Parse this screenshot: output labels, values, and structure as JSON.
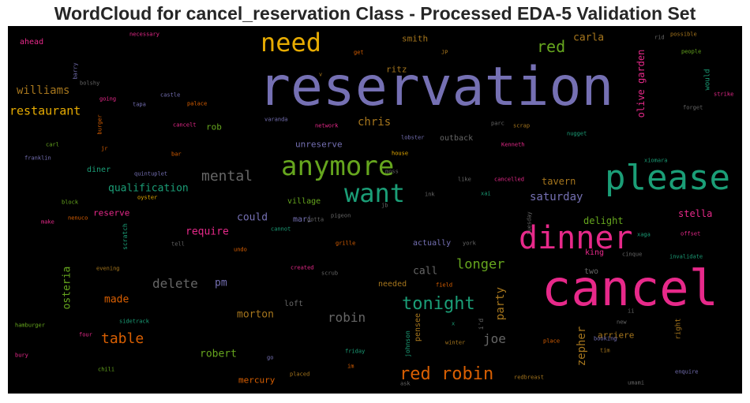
{
  "title": "WordCloud for cancel_reservation Class - Processed EDA-5 Validation Set",
  "colors": {
    "background": "#000000",
    "title": "#262626",
    "purple": "#7570b3",
    "pink": "#e7298a",
    "teal": "#1b9e77",
    "orange": "#d95f02",
    "green": "#66a61e",
    "gold": "#e6ab02",
    "brown": "#a6761d",
    "gray": "#666666"
  },
  "chart_data": {
    "type": "wordcloud",
    "title": "WordCloud for cancel_reservation Class - Processed EDA-5 Validation Set",
    "words": [
      {
        "text": "reservation",
        "color": "purple",
        "size": 68
      },
      {
        "text": "cancel",
        "color": "pink",
        "size": 62
      },
      {
        "text": "please",
        "color": "teal",
        "size": 44
      },
      {
        "text": "dinner",
        "color": "pink",
        "size": 40
      },
      {
        "text": "anymore",
        "color": "green",
        "size": 34
      },
      {
        "text": "want",
        "color": "teal",
        "size": 32
      },
      {
        "text": "need",
        "color": "gold",
        "size": 32
      },
      {
        "text": "red robin",
        "color": "orange",
        "size": 22
      },
      {
        "text": "tonight",
        "color": "teal",
        "size": 22
      },
      {
        "text": "red",
        "color": "green",
        "size": 20
      },
      {
        "text": "table",
        "color": "orange",
        "size": 18
      },
      {
        "text": "mental",
        "color": "gray",
        "size": 18
      },
      {
        "text": "longer",
        "color": "green",
        "size": 17
      },
      {
        "text": "delete",
        "color": "gray",
        "size": 16
      },
      {
        "text": "robin",
        "color": "gray",
        "size": 16
      },
      {
        "text": "joe",
        "color": "gray",
        "size": 16
      },
      {
        "text": "restaurant",
        "color": "gold",
        "size": 15
      },
      {
        "text": "williams",
        "color": "brown",
        "size": 14
      },
      {
        "text": "chris",
        "color": "brown",
        "size": 14
      },
      {
        "text": "saturday",
        "color": "purple",
        "size": 14
      },
      {
        "text": "qualification",
        "color": "teal",
        "size": 13
      },
      {
        "text": "carla",
        "color": "brown",
        "size": 13
      },
      {
        "text": "call",
        "color": "gray",
        "size": 13
      },
      {
        "text": "could",
        "color": "purple",
        "size": 13
      },
      {
        "text": "require",
        "color": "pink",
        "size": 13
      },
      {
        "text": "made",
        "color": "orange",
        "size": 13
      },
      {
        "text": "pm",
        "color": "purple",
        "size": 13
      },
      {
        "text": "morton",
        "color": "brown",
        "size": 13
      },
      {
        "text": "robert",
        "color": "green",
        "size": 13
      },
      {
        "text": "mercury",
        "color": "orange",
        "size": 11
      },
      {
        "text": "delight",
        "color": "green",
        "size": 12
      },
      {
        "text": "stella",
        "color": "pink",
        "size": 12
      },
      {
        "text": "tavern",
        "color": "brown",
        "size": 12
      },
      {
        "text": "arriere",
        "color": "brown",
        "size": 11
      },
      {
        "text": "rob",
        "color": "green",
        "size": 11
      },
      {
        "text": "reserve",
        "color": "pink",
        "size": 11
      },
      {
        "text": "unreserve",
        "color": "purple",
        "size": 11
      },
      {
        "text": "smith",
        "color": "brown",
        "size": 11
      },
      {
        "text": "ritz",
        "color": "brown",
        "size": 11
      },
      {
        "text": "king",
        "color": "pink",
        "size": 10
      },
      {
        "text": "ahead",
        "color": "pink",
        "size": 10
      },
      {
        "text": "village",
        "color": "green",
        "size": 10
      },
      {
        "text": "diner",
        "color": "teal",
        "size": 10
      },
      {
        "text": "outback",
        "color": "gray",
        "size": 10
      },
      {
        "text": "actually",
        "color": "purple",
        "size": 10
      },
      {
        "text": "needed",
        "color": "brown",
        "size": 10
      },
      {
        "text": "two",
        "color": "gray",
        "size": 10
      },
      {
        "text": "mari",
        "color": "purple",
        "size": 10
      },
      {
        "text": "loft",
        "color": "gray",
        "size": 10
      },
      {
        "text": "olive garden",
        "color": "pink",
        "size": 12,
        "vertical": true
      },
      {
        "text": "zepher",
        "color": "brown",
        "size": 14,
        "vertical": true
      },
      {
        "text": "party",
        "color": "brown",
        "size": 14,
        "vertical": true
      },
      {
        "text": "osteria",
        "color": "green",
        "size": 13,
        "vertical": true
      },
      {
        "text": "pensee",
        "color": "brown",
        "size": 10,
        "vertical": true
      },
      {
        "text": "would",
        "color": "teal",
        "size": 9,
        "vertical": true
      },
      {
        "text": "right",
        "color": "brown",
        "size": 9,
        "vertical": true
      },
      {
        "text": "johnson",
        "color": "teal",
        "size": 8,
        "vertical": true
      },
      {
        "text": "i'd",
        "color": "gray",
        "size": 8,
        "vertical": true
      },
      {
        "text": "scratch",
        "color": "teal",
        "size": 8,
        "vertical": true
      },
      {
        "text": "tuesday",
        "color": "gray",
        "size": 7,
        "vertical": true
      },
      {
        "text": "burger",
        "color": "orange",
        "size": 7,
        "vertical": true
      },
      {
        "text": "barry",
        "color": "purple",
        "size": 7,
        "vertical": true
      },
      {
        "text": "necessary",
        "color": "pink",
        "size": 7
      },
      {
        "text": "possible",
        "color": "brown",
        "size": 7
      },
      {
        "text": "rid",
        "color": "gray",
        "size": 7
      },
      {
        "text": "people",
        "color": "green",
        "size": 7
      },
      {
        "text": "get",
        "color": "orange",
        "size": 7
      },
      {
        "text": "JP",
        "color": "brown",
        "size": 7
      },
      {
        "text": "v",
        "color": "brown",
        "size": 7
      },
      {
        "text": "bolshy",
        "color": "gray",
        "size": 7
      },
      {
        "text": "going",
        "color": "pink",
        "size": 7
      },
      {
        "text": "tapa",
        "color": "purple",
        "size": 7
      },
      {
        "text": "castle",
        "color": "purple",
        "size": 7
      },
      {
        "text": "palace",
        "color": "orange",
        "size": 7
      },
      {
        "text": "strike",
        "color": "pink",
        "size": 7
      },
      {
        "text": "forget",
        "color": "gray",
        "size": 7
      },
      {
        "text": "varanda",
        "color": "purple",
        "size": 7
      },
      {
        "text": "network",
        "color": "pink",
        "size": 7
      },
      {
        "text": "parc",
        "color": "gray",
        "size": 7
      },
      {
        "text": "scrap",
        "color": "brown",
        "size": 7
      },
      {
        "text": "cancelt",
        "color": "pink",
        "size": 7
      },
      {
        "text": "nugget",
        "color": "teal",
        "size": 7
      },
      {
        "text": "carl",
        "color": "green",
        "size": 7
      },
      {
        "text": "lobster",
        "color": "purple",
        "size": 7
      },
      {
        "text": "Kenneth",
        "color": "pink",
        "size": 7
      },
      {
        "text": "franklin",
        "color": "purple",
        "size": 7
      },
      {
        "text": "jr",
        "color": "orange",
        "size": 7
      },
      {
        "text": "bar",
        "color": "orange",
        "size": 7
      },
      {
        "text": "house",
        "color": "gold",
        "size": 7
      },
      {
        "text": "xiomara",
        "color": "teal",
        "size": 7
      },
      {
        "text": "quintuplet",
        "color": "purple",
        "size": 7
      },
      {
        "text": "moss",
        "color": "gray",
        "size": 7
      },
      {
        "text": "like",
        "color": "gray",
        "size": 7
      },
      {
        "text": "cancelled",
        "color": "pink",
        "size": 7
      },
      {
        "text": "block",
        "color": "green",
        "size": 7
      },
      {
        "text": "oyster",
        "color": "gold",
        "size": 7
      },
      {
        "text": "ink",
        "color": "gray",
        "size": 7
      },
      {
        "text": "xai",
        "color": "teal",
        "size": 7
      },
      {
        "text": "jb",
        "color": "gray",
        "size": 7
      },
      {
        "text": "make",
        "color": "pink",
        "size": 7
      },
      {
        "text": "nenuco",
        "color": "orange",
        "size": 7
      },
      {
        "text": "gotta",
        "color": "gray",
        "size": 7
      },
      {
        "text": "pigeon",
        "color": "gray",
        "size": 7
      },
      {
        "text": "cannot",
        "color": "teal",
        "size": 7
      },
      {
        "text": "xaga",
        "color": "teal",
        "size": 7
      },
      {
        "text": "offset",
        "color": "pink",
        "size": 7
      },
      {
        "text": "tell",
        "color": "gray",
        "size": 7
      },
      {
        "text": "undo",
        "color": "orange",
        "size": 7
      },
      {
        "text": "grille",
        "color": "orange",
        "size": 7
      },
      {
        "text": "york",
        "color": "gray",
        "size": 7
      },
      {
        "text": "cinque",
        "color": "gray",
        "size": 7
      },
      {
        "text": "invalidate",
        "color": "teal",
        "size": 7
      },
      {
        "text": "evening",
        "color": "brown",
        "size": 7
      },
      {
        "text": "created",
        "color": "pink",
        "size": 7
      },
      {
        "text": "scrub",
        "color": "gray",
        "size": 7
      },
      {
        "text": "field",
        "color": "orange",
        "size": 7
      },
      {
        "text": "ii",
        "color": "gray",
        "size": 7
      },
      {
        "text": "new",
        "color": "gray",
        "size": 7
      },
      {
        "text": "hamburger",
        "color": "green",
        "size": 7
      },
      {
        "text": "sidetrack",
        "color": "teal",
        "size": 7
      },
      {
        "text": "x",
        "color": "teal",
        "size": 7
      },
      {
        "text": "four",
        "color": "pink",
        "size": 7
      },
      {
        "text": "winter",
        "color": "brown",
        "size": 7
      },
      {
        "text": "booking",
        "color": "purple",
        "size": 7
      },
      {
        "text": "place",
        "color": "orange",
        "size": 7
      },
      {
        "text": "tim",
        "color": "brown",
        "size": 7
      },
      {
        "text": "bury",
        "color": "pink",
        "size": 7
      },
      {
        "text": "friday",
        "color": "teal",
        "size": 7
      },
      {
        "text": "go",
        "color": "purple",
        "size": 7
      },
      {
        "text": "im",
        "color": "orange",
        "size": 7
      },
      {
        "text": "chili",
        "color": "green",
        "size": 7
      },
      {
        "text": "placed",
        "color": "brown",
        "size": 7
      },
      {
        "text": "redbreast",
        "color": "brown",
        "size": 7
      },
      {
        "text": "enquire",
        "color": "purple",
        "size": 7
      },
      {
        "text": "ask",
        "color": "gray",
        "size": 7
      },
      {
        "text": "umami",
        "color": "gray",
        "size": 7
      }
    ]
  }
}
